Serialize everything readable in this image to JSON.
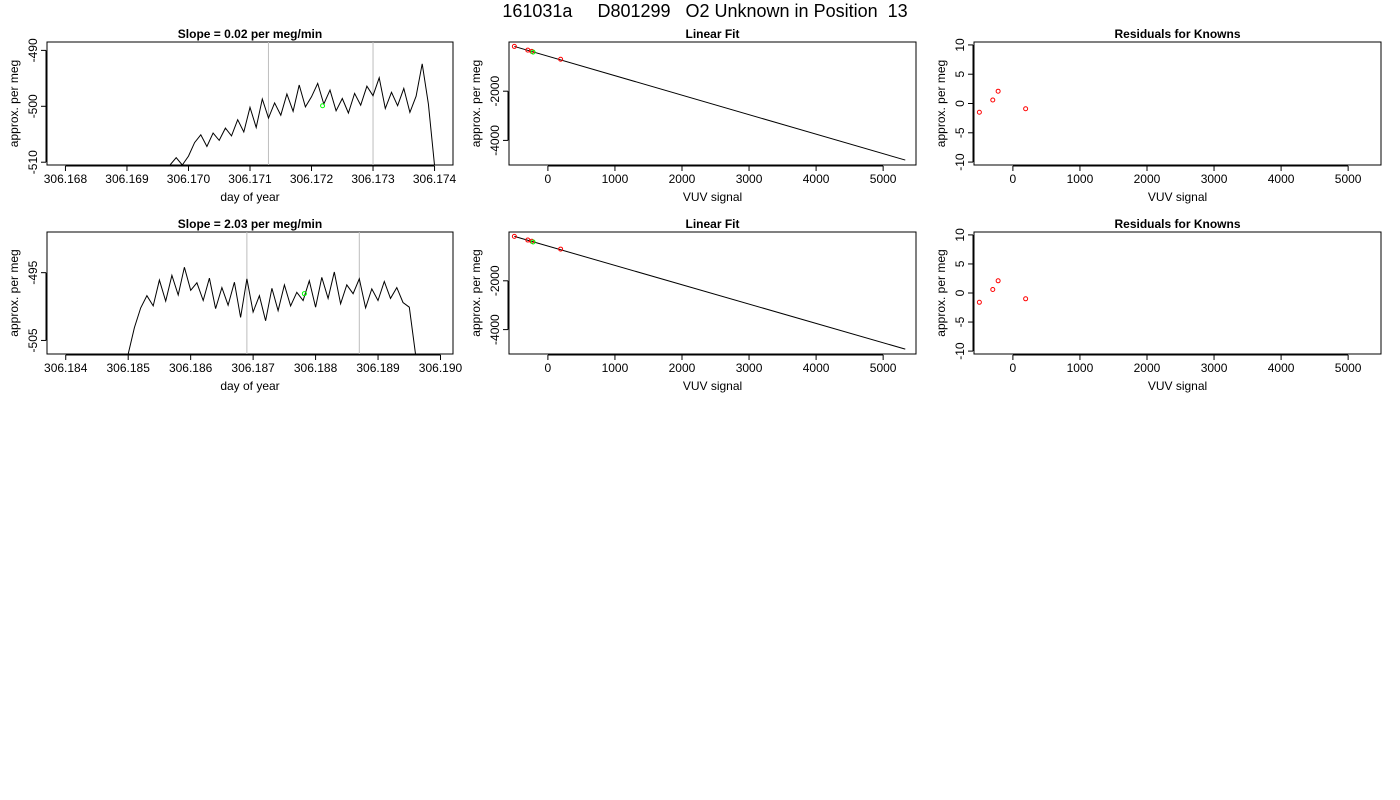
{
  "page": {
    "title": "161031a     D801299   O2 Unknown in Position  13"
  },
  "chart_data": [
    {
      "type": "line",
      "title": "Slope =  0.02  per meg/min",
      "xlabel": "day of year",
      "ylabel": "approx. per meg",
      "xlim": [
        306.1677,
        306.1743
      ],
      "ylim": [
        -510.5,
        -488.5
      ],
      "x_ticks": [
        306.168,
        306.169,
        306.17,
        306.171,
        306.172,
        306.173,
        306.174
      ],
      "x_tick_labels": [
        "306.168",
        "306.169",
        "306.170",
        "306.171",
        "306.172",
        "306.173",
        "306.174"
      ],
      "y_ticks": [
        -490,
        -500,
        -510
      ],
      "y_tick_labels": [
        "-490",
        "-500",
        "-510"
      ],
      "vlines": [
        306.1713,
        306.173
      ],
      "series": [
        {
          "x": [
            306.1697,
            306.1698,
            306.1699,
            306.17,
            306.1701,
            306.1702,
            306.1703,
            306.1704,
            306.1705,
            306.1706,
            306.1707,
            306.1708,
            306.1709,
            306.171,
            306.1711,
            306.1712,
            306.1713,
            306.1714,
            306.1715,
            306.1716,
            306.1717,
            306.1718,
            306.1719,
            306.172,
            306.1721,
            306.1722,
            306.1723,
            306.1724,
            306.1725,
            306.1726,
            306.1727,
            306.1728,
            306.1729,
            306.173,
            306.1731,
            306.1732,
            306.1733,
            306.1734,
            306.1735,
            306.1736,
            306.1737,
            306.1738,
            306.1739,
            306.174
          ],
          "y": [
            -510.5,
            -509.2,
            -510.5,
            -508.9,
            -506.5,
            -505.1,
            -507.2,
            -504.8,
            -506.1,
            -503.9,
            -505.3,
            -502.4,
            -504.6,
            -500.2,
            -503.8,
            -498.7,
            -502.1,
            -499.4,
            -501.6,
            -497.8,
            -500.9,
            -496.2,
            -500.1,
            -498.3,
            -495.9,
            -499.6,
            -497.1,
            -500.8,
            -498.6,
            -501.2,
            -497.7,
            -499.8,
            -496.4,
            -498.1,
            -494.9,
            -500.4,
            -497.5,
            -499.9,
            -496.8,
            -501.1,
            -498.2,
            -492.4,
            -499.6,
            -510.5
          ]
        }
      ],
      "unknown_points": [
        {
          "x": 306.17218,
          "y": -499.9
        }
      ]
    },
    {
      "type": "scatter",
      "title": "Linear Fit",
      "xlabel": "VUV signal",
      "ylabel": "approx. per meg",
      "xlim": [
        -580,
        5490
      ],
      "ylim": [
        -5000,
        0
      ],
      "x_ticks": [
        0,
        1000,
        2000,
        3000,
        4000,
        5000
      ],
      "x_tick_labels": [
        "0",
        "1000",
        "2000",
        "3000",
        "4000",
        "5000"
      ],
      "y_ticks": [
        -2000,
        -4000
      ],
      "y_tick_labels": [
        "-2000",
        "-4000"
      ],
      "fit_line": {
        "x": [
          -500,
          5330
        ],
        "y": [
          -180,
          -4800
        ]
      },
      "known_points": [
        {
          "x": -500,
          "y": -180
        },
        {
          "x": -300,
          "y": -330
        },
        {
          "x": -240,
          "y": -380
        },
        {
          "x": 190,
          "y": -700
        }
      ],
      "unknown_points": [
        {
          "x": -220,
          "y": -410
        }
      ]
    },
    {
      "type": "scatter",
      "title": "Residuals for Knowns",
      "xlabel": "VUV signal",
      "ylabel": "approx. per meg",
      "xlim": [
        -580,
        5490
      ],
      "ylim": [
        -10.5,
        10.5
      ],
      "x_ticks": [
        0,
        1000,
        2000,
        3000,
        4000,
        5000
      ],
      "x_tick_labels": [
        "0",
        "1000",
        "2000",
        "3000",
        "4000",
        "5000"
      ],
      "y_ticks": [
        10,
        5,
        0,
        -5,
        -10
      ],
      "y_tick_labels": [
        "10",
        "5",
        "0",
        "-5",
        "-10"
      ],
      "known_points": [
        {
          "x": -500,
          "y": -1.5
        },
        {
          "x": -300,
          "y": 0.6
        },
        {
          "x": -220,
          "y": 2.1
        },
        {
          "x": 190,
          "y": -0.9
        }
      ]
    },
    {
      "type": "line",
      "title": "Slope =  2.03  per meg/min",
      "xlabel": "day of year",
      "ylabel": "approx. per meg",
      "xlim": [
        306.1837,
        306.1902
      ],
      "ylim": [
        -507,
        -489
      ],
      "x_ticks": [
        306.184,
        306.185,
        306.186,
        306.187,
        306.188,
        306.189,
        306.19
      ],
      "x_tick_labels": [
        "306.184",
        "306.185",
        "306.186",
        "306.187",
        "306.188",
        "306.189",
        "306.190"
      ],
      "y_ticks": [
        -495,
        -505
      ],
      "y_tick_labels": [
        "-495",
        "-505"
      ],
      "vlines": [
        306.1869,
        306.1887
      ],
      "series": [
        {
          "x": [
            306.185,
            306.1851,
            306.1852,
            306.1853,
            306.1854,
            306.1855,
            306.1856,
            306.1857,
            306.1858,
            306.1859,
            306.186,
            306.1861,
            306.1862,
            306.1863,
            306.1864,
            306.1865,
            306.1866,
            306.1867,
            306.1868,
            306.1869,
            306.187,
            306.1871,
            306.1872,
            306.1873,
            306.1874,
            306.1875,
            306.1876,
            306.1877,
            306.1878,
            306.1879,
            306.188,
            306.1881,
            306.1882,
            306.1883,
            306.1884,
            306.1885,
            306.1886,
            306.1887,
            306.1888,
            306.1889,
            306.189,
            306.1891,
            306.1892,
            306.1893,
            306.1894,
            306.1895,
            306.1896
          ],
          "y": [
            -507,
            -503.1,
            -500.2,
            -498.4,
            -499.9,
            -496.1,
            -499.2,
            -495.4,
            -498.3,
            -494.2,
            -497.6,
            -496.5,
            -499.1,
            -495.8,
            -500.3,
            -497.2,
            -499.8,
            -496.4,
            -501.6,
            -495.9,
            -500.8,
            -498.4,
            -502.1,
            -497.3,
            -500.6,
            -496.8,
            -499.9,
            -497.9,
            -499.1,
            -496.2,
            -500.1,
            -495.7,
            -498.8,
            -494.9,
            -499.6,
            -496.8,
            -498.1,
            -495.9,
            -500.2,
            -497.4,
            -499.1,
            -496.3,
            -498.8,
            -497.2,
            -499.4,
            -500.1,
            -507
          ]
        }
      ],
      "unknown_points": [
        {
          "x": 306.18782,
          "y": -498.1
        }
      ]
    },
    {
      "type": "scatter",
      "title": "Linear Fit",
      "xlabel": "VUV signal",
      "ylabel": "approx. per meg",
      "xlim": [
        -580,
        5490
      ],
      "ylim": [
        -5000,
        0
      ],
      "x_ticks": [
        0,
        1000,
        2000,
        3000,
        4000,
        5000
      ],
      "x_tick_labels": [
        "0",
        "1000",
        "2000",
        "3000",
        "4000",
        "5000"
      ],
      "y_ticks": [
        -2000,
        -4000
      ],
      "y_tick_labels": [
        "-2000",
        "-4000"
      ],
      "fit_line": {
        "x": [
          -500,
          5330
        ],
        "y": [
          -180,
          -4800
        ]
      },
      "known_points": [
        {
          "x": -500,
          "y": -180
        },
        {
          "x": -300,
          "y": -330
        },
        {
          "x": -240,
          "y": -380
        },
        {
          "x": 190,
          "y": -700
        }
      ],
      "unknown_points": [
        {
          "x": -220,
          "y": -410
        }
      ]
    },
    {
      "type": "scatter",
      "title": "Residuals for Knowns",
      "xlabel": "VUV signal",
      "ylabel": "approx. per meg",
      "xlim": [
        -580,
        5490
      ],
      "ylim": [
        -10.5,
        10.5
      ],
      "x_ticks": [
        0,
        1000,
        2000,
        3000,
        4000,
        5000
      ],
      "x_tick_labels": [
        "0",
        "1000",
        "2000",
        "3000",
        "4000",
        "5000"
      ],
      "y_ticks": [
        10,
        5,
        0,
        -5,
        -10
      ],
      "y_tick_labels": [
        "10",
        "5",
        "0",
        "-5",
        "-10"
      ],
      "known_points": [
        {
          "x": -500,
          "y": -1.6
        },
        {
          "x": -300,
          "y": 0.6
        },
        {
          "x": -220,
          "y": 2.1
        },
        {
          "x": 190,
          "y": -1.0
        }
      ]
    }
  ],
  "colors": {
    "line": "#000000",
    "known_point": "#ff0000",
    "unknown_point": "#00ff00",
    "vline": "#bebebe",
    "box": "#000000"
  }
}
